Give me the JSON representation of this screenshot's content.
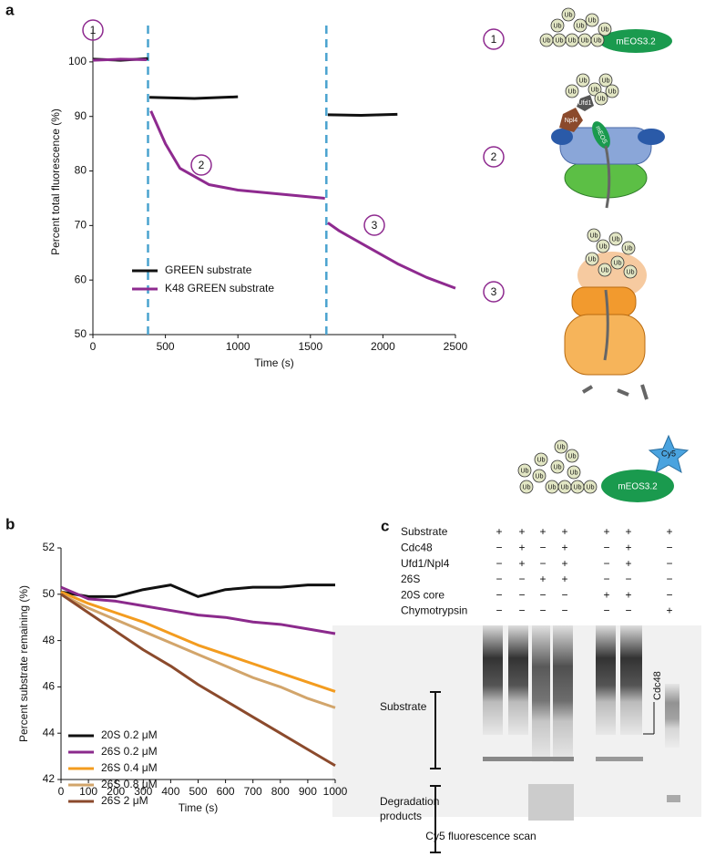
{
  "panels": [
    "a",
    "b",
    "c"
  ],
  "chart_data": [
    {
      "type": "line",
      "xlabel": "Time (s)",
      "ylabel": "Percent total fluorescence (%)",
      "xlim": [
        0,
        2500
      ],
      "ylim": [
        50,
        106
      ],
      "xticks": [
        0,
        500,
        1000,
        1500,
        2000,
        2500
      ],
      "yticks": [
        50,
        60,
        70,
        80,
        90,
        100
      ],
      "vlines": [
        380,
        1610
      ],
      "vline_color": "#4aa3cf",
      "annotations": [
        "1",
        "2",
        "3"
      ],
      "series": [
        {
          "name": "GREEN substrate",
          "color": "#111111",
          "x": [
            0,
            190,
            380,
            385,
            390,
            700,
            1000,
            1300,
            1620,
            1850,
            2100
          ],
          "values": [
            100.5,
            100.3,
            100.6,
            null,
            93.5,
            93.3,
            93.6,
            null,
            90.3,
            90.2,
            90.4
          ]
        },
        {
          "name": "K48 GREEN substrate",
          "color": "#8e2a8f",
          "x": [
            0,
            190,
            370,
            380,
            400,
            500,
            600,
            800,
            1000,
            1200,
            1400,
            1600,
            1610,
            1620,
            1700,
            1900,
            2100,
            2300,
            2500
          ],
          "values": [
            100.3,
            100.5,
            100.4,
            null,
            91,
            85,
            80.5,
            77.5,
            76.5,
            76,
            75.5,
            75,
            null,
            70.5,
            69,
            66,
            63,
            60.5,
            58.5
          ]
        }
      ]
    },
    {
      "type": "line",
      "xlabel": "Time (s)",
      "ylabel": "Percent substrate remaining (%)",
      "xlim": [
        0,
        1000
      ],
      "ylim": [
        42,
        52
      ],
      "xticks": [
        0,
        100,
        200,
        300,
        400,
        500,
        600,
        700,
        800,
        900,
        1000
      ],
      "yticks": [
        42,
        44,
        46,
        48,
        50,
        52
      ],
      "x": [
        0,
        100,
        200,
        300,
        400,
        500,
        600,
        700,
        800,
        900,
        1000
      ],
      "series": [
        {
          "name": "20S 0.2 μM",
          "color": "#111111",
          "values": [
            50.1,
            49.9,
            49.9,
            50.2,
            50.4,
            49.9,
            50.2,
            50.3,
            50.3,
            50.4,
            50.4
          ]
        },
        {
          "name": "26S 0.2 μM",
          "color": "#8b2a8c",
          "values": [
            50.3,
            49.8,
            49.7,
            49.5,
            49.3,
            49.1,
            49.0,
            48.8,
            48.7,
            48.5,
            48.3
          ]
        },
        {
          "name": "26S 0.4 μM",
          "color": "#f39c1f",
          "values": [
            50.1,
            49.6,
            49.2,
            48.8,
            48.3,
            47.8,
            47.4,
            47.0,
            46.6,
            46.2,
            45.8
          ]
        },
        {
          "name": "26S 0.8 μM",
          "color": "#d2a56b",
          "values": [
            50.0,
            49.4,
            48.9,
            48.4,
            47.9,
            47.4,
            46.9,
            46.4,
            46.0,
            45.5,
            45.1
          ]
        },
        {
          "name": "26S 2 μM",
          "color": "#8b4a2c",
          "values": [
            50.0,
            49.2,
            48.4,
            47.6,
            46.9,
            46.1,
            45.4,
            44.7,
            44.0,
            43.3,
            42.6
          ]
        }
      ]
    }
  ],
  "diagram": {
    "steps": [
      "1",
      "2",
      "3"
    ],
    "ub": "Ub",
    "meos_full": "mEOS3.2",
    "meos_short": "mEOS",
    "npl4": "Npl4",
    "ufd1": "Ufd1",
    "cy5": "Cy5"
  },
  "gel": {
    "conditions": [
      {
        "label": "Substrate",
        "values": [
          "+",
          "+",
          "+",
          "+",
          "+",
          "+",
          "+"
        ]
      },
      {
        "label": "Cdc48",
        "values": [
          "−",
          "+",
          "−",
          "+",
          "−",
          "+",
          "−"
        ]
      },
      {
        "label": "Ufd1/Npl4",
        "values": [
          "−",
          "+",
          "−",
          "+",
          "−",
          "+",
          "−"
        ]
      },
      {
        "label": "26S",
        "values": [
          "−",
          "−",
          "+",
          "+",
          "−",
          "−",
          "−"
        ]
      },
      {
        "label": "20S core",
        "values": [
          "−",
          "−",
          "−",
          "−",
          "+",
          "+",
          "−"
        ]
      },
      {
        "label": "Chymotrypsin",
        "values": [
          "−",
          "−",
          "−",
          "−",
          "−",
          "−",
          "+"
        ]
      }
    ],
    "substrate_label": "Substrate",
    "degradation_label": [
      "Degradation",
      "products"
    ],
    "arrow_label": "Cdc48",
    "caption": "Cy5 fluorescence scan"
  }
}
